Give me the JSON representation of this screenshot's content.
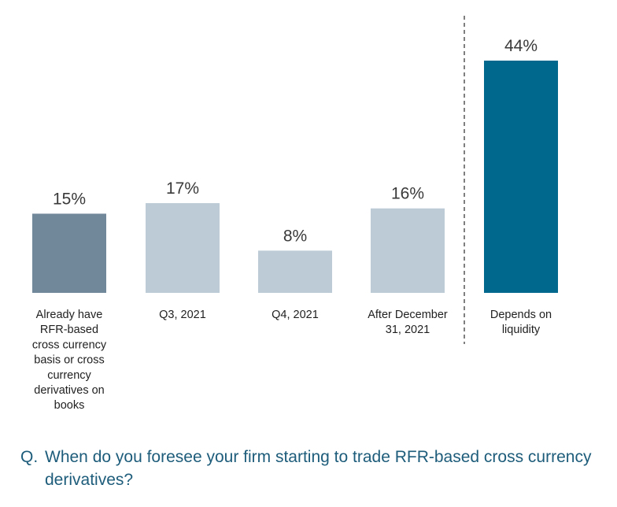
{
  "chart_data": {
    "type": "bar",
    "categories": [
      [
        "Already have",
        "RFR-based",
        "cross currency",
        "basis or cross",
        "currency",
        "derivatives on",
        "books"
      ],
      [
        "Q3, 2021"
      ],
      [
        "Q4, 2021"
      ],
      [
        "After December",
        "31, 2021"
      ],
      [
        "Depends on",
        "liquidity"
      ]
    ],
    "values": [
      15,
      17,
      8,
      16,
      44
    ],
    "value_labels": [
      "15%",
      "17%",
      "8%",
      "16%",
      "44%"
    ],
    "unit": "%",
    "bar_colors": [
      "#71879a",
      "#bccbd6",
      "#bccbd6",
      "#bccbd6",
      "#00688d"
    ],
    "separator": "dashed vertical line before last category",
    "ylim": [
      0,
      44
    ],
    "grid": false,
    "legend": "none"
  },
  "question": {
    "prefix": "Q.",
    "text": "When do you foresee your firm starting to trade RFR-based cross currency derivatives?"
  },
  "colors": {
    "question_text": "#1d5c7a",
    "separator": "#555555"
  }
}
